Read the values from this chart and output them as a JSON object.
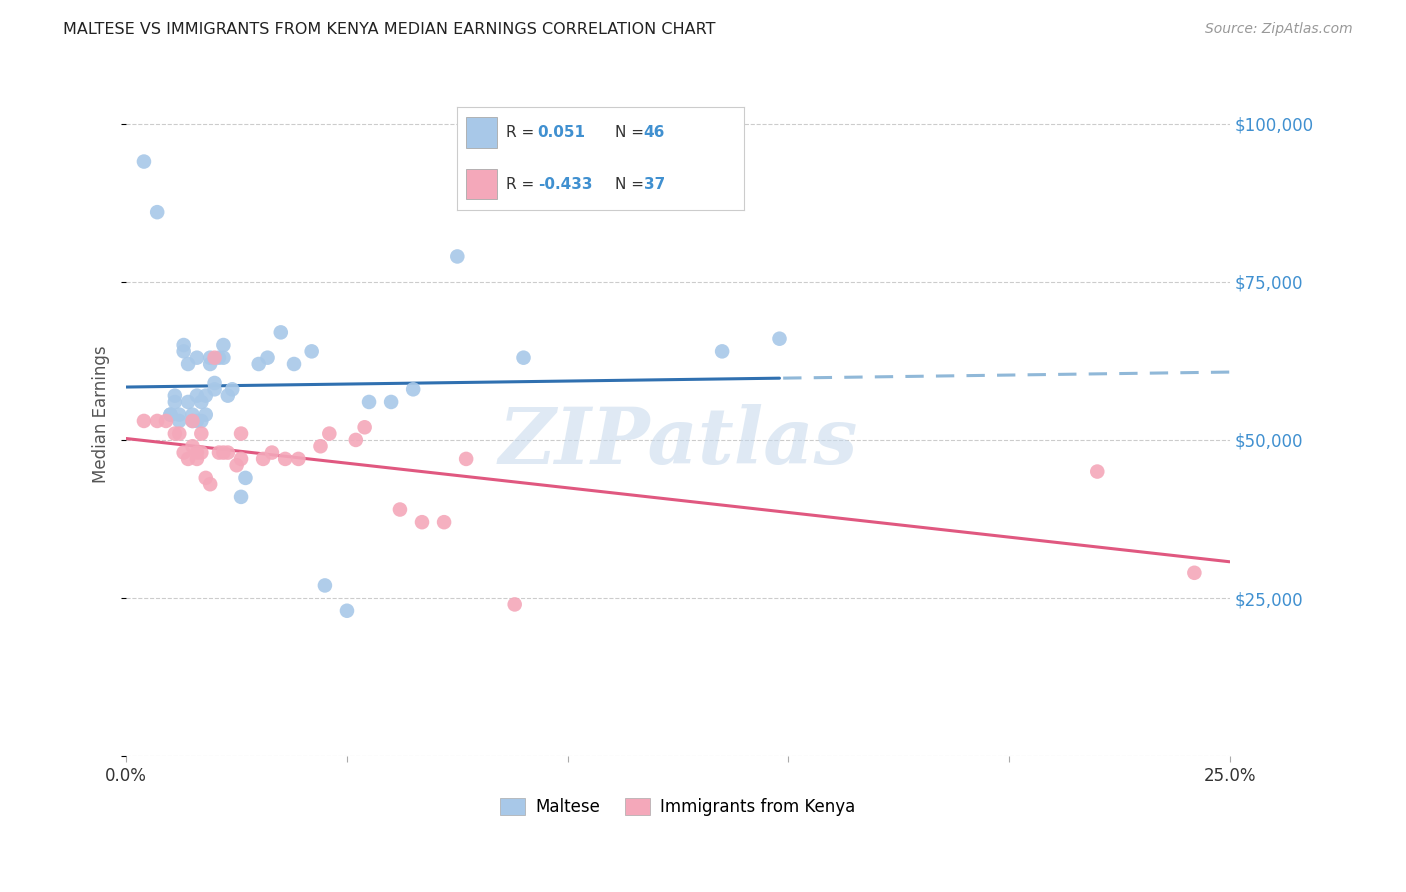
{
  "title": "MALTESE VS IMMIGRANTS FROM KENYA MEDIAN EARNINGS CORRELATION CHART",
  "source": "Source: ZipAtlas.com",
  "ylabel": "Median Earnings",
  "yticks": [
    0,
    25000,
    50000,
    75000,
    100000
  ],
  "ytick_labels": [
    "",
    "$25,000",
    "$50,000",
    "$75,000",
    "$100,000"
  ],
  "xticks": [
    0.0,
    0.05,
    0.1,
    0.15,
    0.2,
    0.25
  ],
  "xtick_labels": [
    "0.0%",
    "",
    "",
    "",
    "",
    "25.0%"
  ],
  "xlim": [
    0.0,
    0.25
  ],
  "ylim": [
    0,
    108000
  ],
  "blue_color": "#a8c8e8",
  "pink_color": "#f4a8ba",
  "blue_line_color": "#3070b0",
  "pink_line_color": "#e05880",
  "blue_dash_color": "#90b8d8",
  "legend_R1_label": "R = ",
  "legend_R1_val": " 0.051",
  "legend_N1_label": "N = ",
  "legend_N1_val": "46",
  "legend_R2_label": "R = ",
  "legend_R2_val": "-0.433",
  "legend_N2_label": "N = ",
  "legend_N2_val": "37",
  "blue_points_x": [
    0.004,
    0.007,
    0.01,
    0.01,
    0.011,
    0.011,
    0.012,
    0.012,
    0.013,
    0.013,
    0.014,
    0.014,
    0.015,
    0.015,
    0.016,
    0.016,
    0.016,
    0.017,
    0.017,
    0.018,
    0.018,
    0.019,
    0.019,
    0.02,
    0.02,
    0.021,
    0.022,
    0.022,
    0.023,
    0.024,
    0.026,
    0.027,
    0.03,
    0.032,
    0.035,
    0.038,
    0.042,
    0.045,
    0.05,
    0.055,
    0.06,
    0.065,
    0.075,
    0.09,
    0.135,
    0.148
  ],
  "blue_points_y": [
    94000,
    86000,
    54000,
    54000,
    56000,
    57000,
    53000,
    54000,
    64000,
    65000,
    56000,
    62000,
    53000,
    54000,
    53000,
    57000,
    63000,
    53000,
    56000,
    54000,
    57000,
    62000,
    63000,
    58000,
    59000,
    63000,
    65000,
    63000,
    57000,
    58000,
    41000,
    44000,
    62000,
    63000,
    67000,
    62000,
    64000,
    27000,
    23000,
    56000,
    56000,
    58000,
    79000,
    63000,
    64000,
    66000
  ],
  "pink_points_x": [
    0.004,
    0.007,
    0.009,
    0.011,
    0.012,
    0.013,
    0.014,
    0.015,
    0.015,
    0.016,
    0.016,
    0.017,
    0.017,
    0.018,
    0.019,
    0.02,
    0.021,
    0.022,
    0.023,
    0.025,
    0.026,
    0.026,
    0.031,
    0.033,
    0.036,
    0.039,
    0.044,
    0.046,
    0.052,
    0.054,
    0.062,
    0.067,
    0.072,
    0.077,
    0.088,
    0.22,
    0.242
  ],
  "pink_points_y": [
    53000,
    53000,
    53000,
    51000,
    51000,
    48000,
    47000,
    49000,
    53000,
    48000,
    47000,
    48000,
    51000,
    44000,
    43000,
    63000,
    48000,
    48000,
    48000,
    46000,
    47000,
    51000,
    47000,
    48000,
    47000,
    47000,
    49000,
    51000,
    50000,
    52000,
    39000,
    37000,
    37000,
    47000,
    24000,
    45000,
    29000
  ],
  "watermark": "ZIPatlas",
  "background_color": "#ffffff",
  "grid_color": "#cccccc",
  "grid_style": "--"
}
